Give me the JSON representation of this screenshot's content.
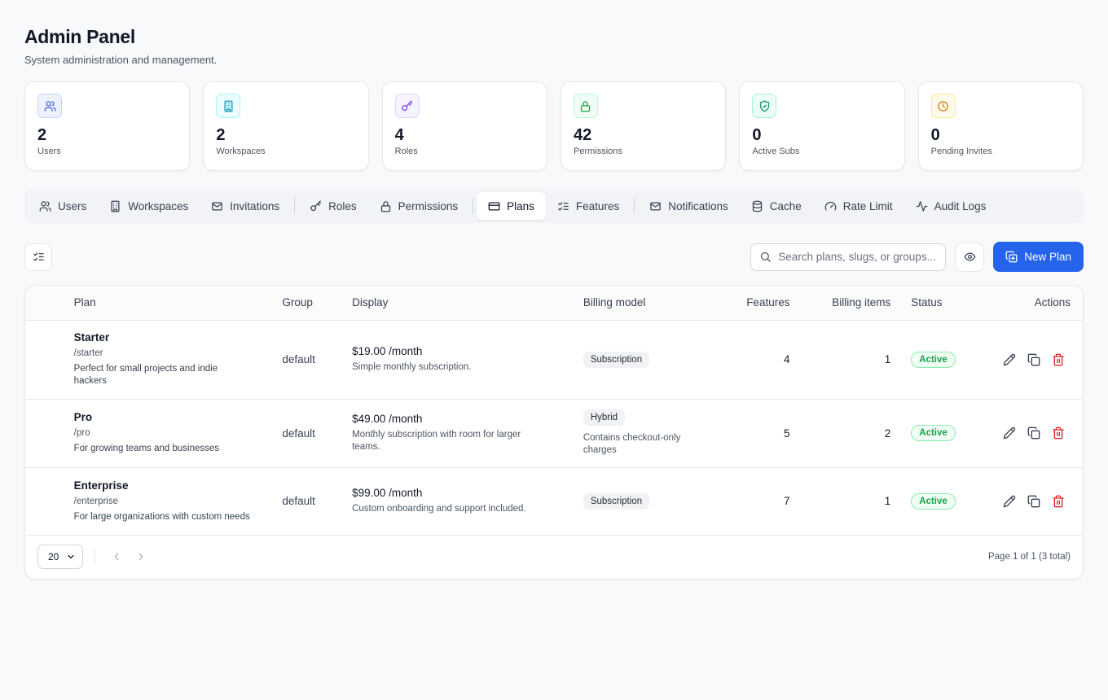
{
  "header": {
    "title": "Admin Panel",
    "subtitle": "System administration and management."
  },
  "stats": [
    {
      "value": "2",
      "label": "Users",
      "icon": "users-icon",
      "color": "#3b5bdb",
      "bg": "#eef2ff",
      "border": "#c7d2fe"
    },
    {
      "value": "2",
      "label": "Workspaces",
      "icon": "building-icon",
      "color": "#0891b2",
      "bg": "#ecfeff",
      "border": "#a5f3fc"
    },
    {
      "value": "4",
      "label": "Roles",
      "icon": "key-icon",
      "color": "#7c3aed",
      "bg": "#f5f3ff",
      "border": "#ddd6fe"
    },
    {
      "value": "42",
      "label": "Permissions",
      "icon": "lock-icon",
      "color": "#16a34a",
      "bg": "#f0fdf4",
      "border": "#bbf7d0"
    },
    {
      "value": "0",
      "label": "Active Subs",
      "icon": "shield-check-icon",
      "color": "#059669",
      "bg": "#ecfdf5",
      "border": "#a7f3d0"
    },
    {
      "value": "0",
      "label": "Pending Invites",
      "icon": "clock-icon",
      "color": "#d97706",
      "bg": "#fffbeb",
      "border": "#fde68a"
    }
  ],
  "tabs": {
    "users": "Users",
    "workspaces": "Workspaces",
    "invitations": "Invitations",
    "roles": "Roles",
    "permissions": "Permissions",
    "plans": "Plans",
    "features": "Features",
    "notifications": "Notifications",
    "cache": "Cache",
    "rate_limit": "Rate Limit",
    "audit_logs": "Audit Logs",
    "active": "Plans"
  },
  "toolbar": {
    "search_placeholder": "Search plans, slugs, or groups...",
    "new_button": "New Plan"
  },
  "table": {
    "columns": {
      "plan": "Plan",
      "group": "Group",
      "display": "Display",
      "billing_model": "Billing model",
      "features": "Features",
      "billing_items": "Billing items",
      "status": "Status",
      "actions": "Actions"
    },
    "rows": [
      {
        "name": "Starter",
        "slug": "/starter",
        "description": "Perfect for small projects and indie hackers",
        "group": "default",
        "price": "$19.00 /month",
        "price_note": "Simple monthly subscription.",
        "billing_model": "Subscription",
        "billing_note": "",
        "features": "4",
        "billing_items": "1",
        "status": "Active"
      },
      {
        "name": "Pro",
        "slug": "/pro",
        "description": "For growing teams and businesses",
        "group": "default",
        "price": "$49.00 /month",
        "price_note": "Monthly subscription with room for larger teams.",
        "billing_model": "Hybrid",
        "billing_note": "Contains checkout-only charges",
        "features": "5",
        "billing_items": "2",
        "status": "Active"
      },
      {
        "name": "Enterprise",
        "slug": "/enterprise",
        "description": "For large organizations with custom needs",
        "group": "default",
        "price": "$99.00 /month",
        "price_note": "Custom onboarding and support included.",
        "billing_model": "Subscription",
        "billing_note": "",
        "features": "7",
        "billing_items": "1",
        "status": "Active"
      }
    ]
  },
  "footer": {
    "page_size": "20",
    "page_info": "Page 1 of 1 (3 total)"
  },
  "colors": {
    "primary": "#2563eb",
    "success": "#16a34a",
    "danger": "#dc2626"
  }
}
